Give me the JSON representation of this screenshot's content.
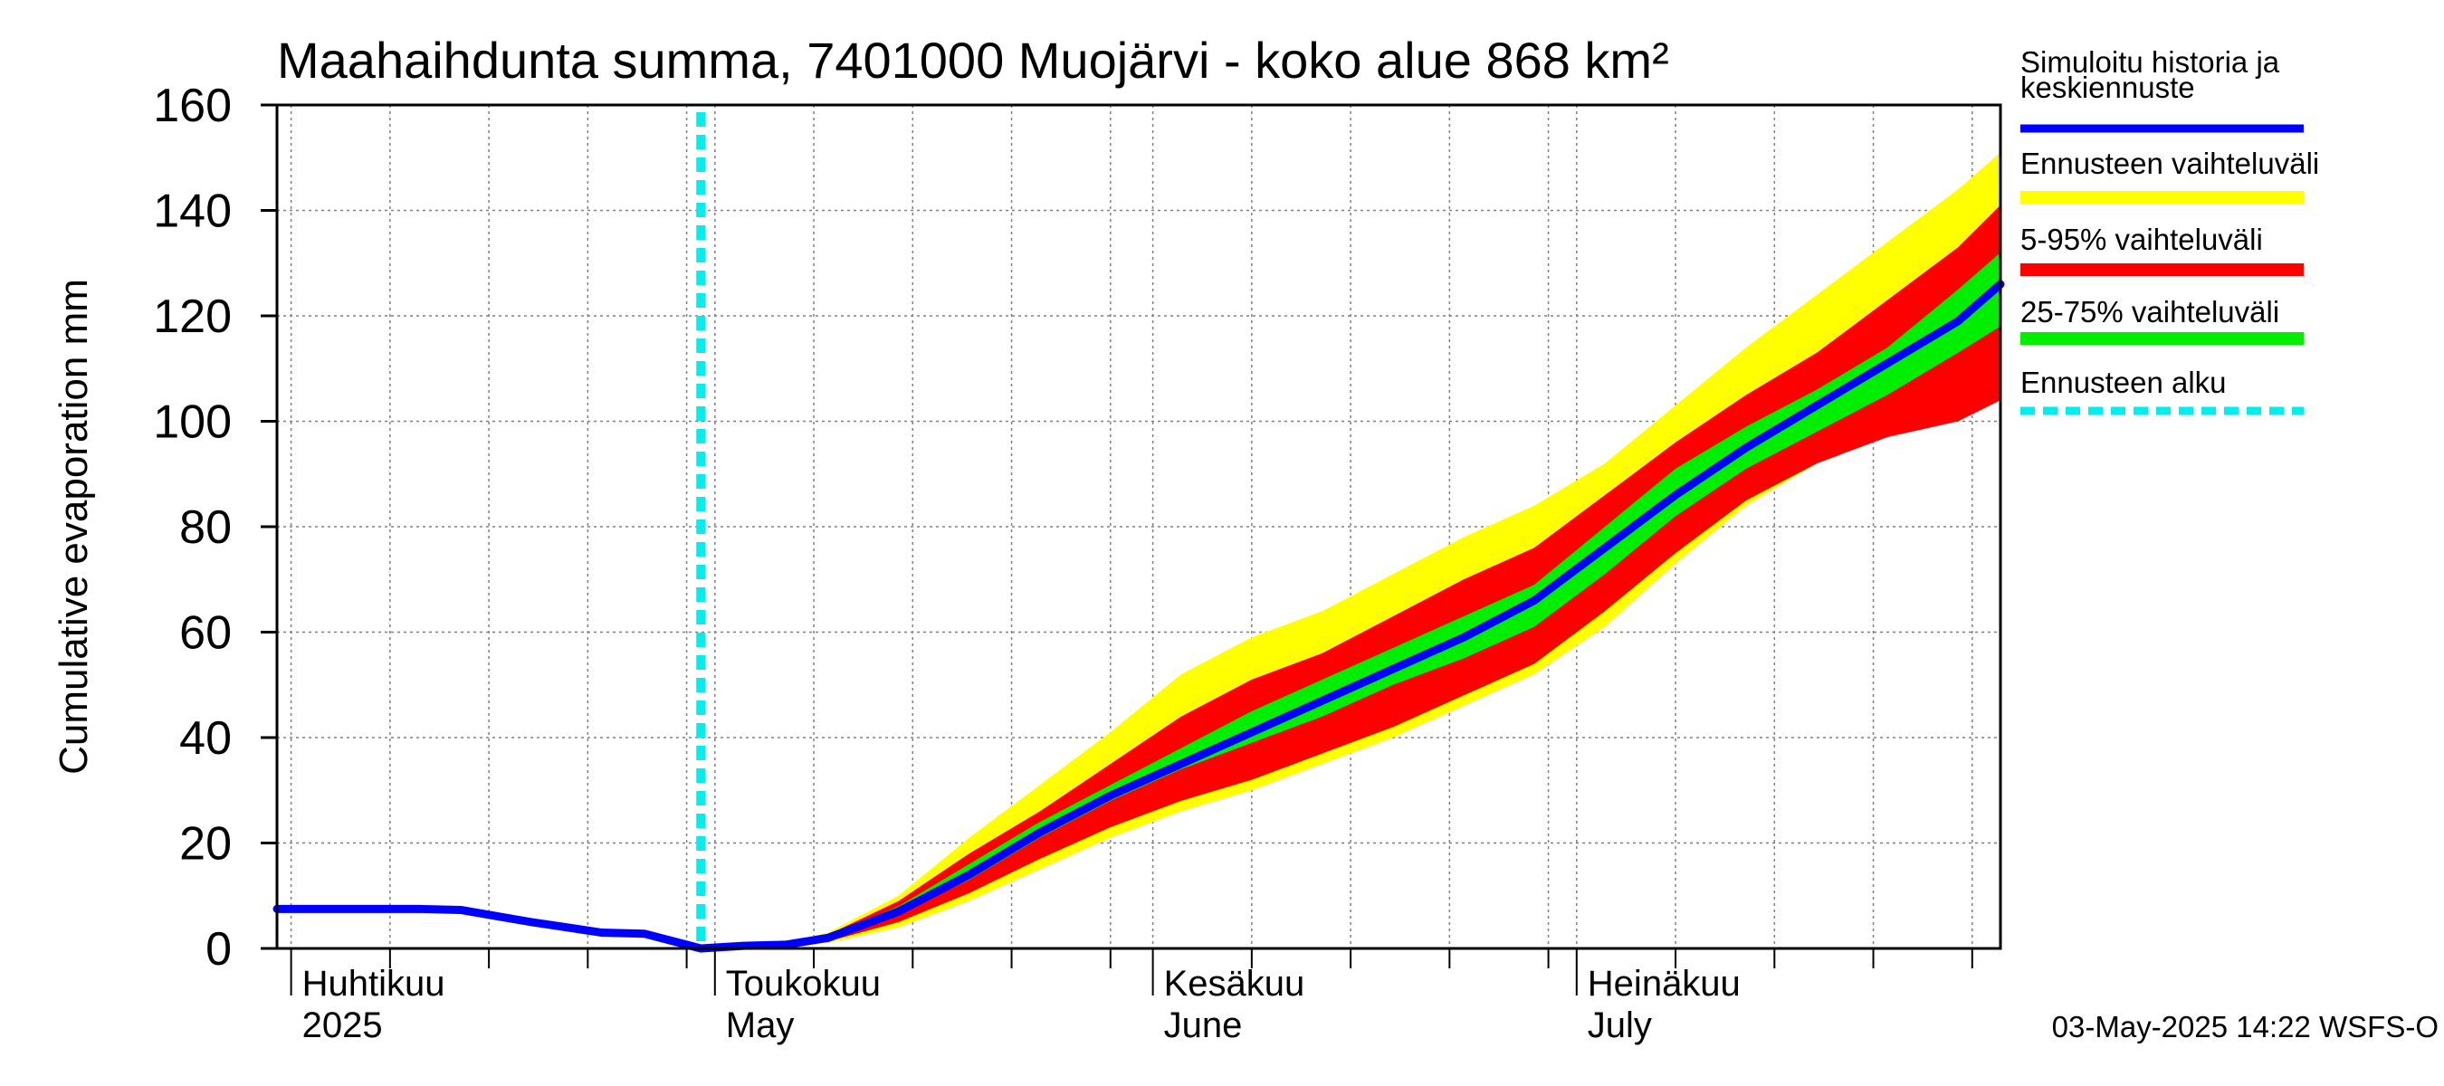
{
  "chart_data": {
    "type": "area",
    "title": "Maahaihdunta summa, 7401000 Muojärvi - koko alue 868 km²",
    "ylabel": "Cumulative evaporation   mm",
    "ylim": [
      0,
      160
    ],
    "yticks": [
      0,
      20,
      40,
      60,
      80,
      100,
      120,
      140,
      160
    ],
    "grid": true,
    "legend_position": "right",
    "x_range": [
      "2025-03-31",
      "2025-07-31"
    ],
    "forecast_start": "2025-04-30",
    "x_month_labels": [
      {
        "date": "2025-04-01",
        "line1": "Huhtikuu",
        "line2": "2025"
      },
      {
        "date": "2025-05-01",
        "line1": "Toukokuu",
        "line2": "May"
      },
      {
        "date": "2025-06-01",
        "line1": "Kesäkuu",
        "line2": "June"
      },
      {
        "date": "2025-07-01",
        "line1": "Heinäkuu",
        "line2": "July"
      }
    ],
    "x": [
      "2025-03-31",
      "2025-04-10",
      "2025-04-13",
      "2025-04-18",
      "2025-04-23",
      "2025-04-26",
      "2025-04-30",
      "2025-05-03",
      "2025-05-06",
      "2025-05-09",
      "2025-05-14",
      "2025-05-19",
      "2025-05-24",
      "2025-05-29",
      "2025-06-03",
      "2025-06-08",
      "2025-06-13",
      "2025-06-18",
      "2025-06-23",
      "2025-06-28",
      "2025-07-03",
      "2025-07-08",
      "2025-07-13",
      "2025-07-18",
      "2025-07-23",
      "2025-07-28",
      "2025-07-31"
    ],
    "series": [
      {
        "name": "Ennusteen vaihteluväli",
        "color": "#ffff00",
        "kind": "band",
        "low": [
          null,
          null,
          null,
          null,
          null,
          null,
          0,
          0,
          0.3,
          1,
          4,
          9,
          15,
          21,
          26,
          30,
          35,
          40,
          46,
          52,
          61,
          73,
          84,
          92,
          98,
          102,
          106
        ],
        "high": [
          null,
          null,
          null,
          null,
          null,
          null,
          0,
          0.3,
          1.2,
          3,
          10,
          21,
          31,
          41,
          52,
          59,
          64,
          71,
          78,
          84,
          92,
          103,
          114,
          124,
          134,
          144,
          151
        ]
      },
      {
        "name": "5-95% vaihteluväli",
        "color": "#ff0000",
        "kind": "band",
        "low": [
          null,
          null,
          null,
          null,
          null,
          null,
          0,
          0,
          0.4,
          1.3,
          5,
          10.5,
          17,
          23,
          28,
          32,
          37,
          42,
          48,
          54,
          64,
          75,
          85,
          92,
          97,
          100,
          104
        ],
        "high": [
          null,
          null,
          null,
          null,
          null,
          null,
          0,
          0.2,
          1,
          2.6,
          9,
          18,
          26,
          35,
          44,
          51,
          56,
          63,
          70,
          76,
          86,
          96,
          105,
          113,
          123,
          133,
          141
        ]
      },
      {
        "name": "25-75% vaihteluväli",
        "color": "#00ee00",
        "kind": "band",
        "low": [
          null,
          null,
          null,
          null,
          null,
          null,
          0,
          0.1,
          0.6,
          1.8,
          6.5,
          13,
          21,
          28,
          34,
          39,
          44,
          50,
          55,
          61,
          71,
          82,
          91,
          98,
          105,
          113,
          118
        ],
        "high": [
          null,
          null,
          null,
          null,
          null,
          null,
          0,
          0.2,
          0.9,
          2.4,
          8,
          16,
          24,
          31,
          38,
          45,
          51,
          57,
          63,
          69,
          80,
          91,
          99,
          106,
          114,
          125,
          132
        ]
      },
      {
        "name": "Simuloitu historia ja keskiennuste",
        "color": "#0000ff",
        "kind": "line",
        "values": [
          7.5,
          7.5,
          7.3,
          5,
          3,
          2.8,
          0,
          0.5,
          0.7,
          2,
          7,
          14,
          22,
          29,
          35,
          41,
          47,
          53,
          59,
          66,
          76,
          86,
          95,
          103,
          111,
          119,
          126
        ]
      }
    ],
    "legend": [
      {
        "label": "Simuloitu historia ja keskiennuste",
        "line1": "Simuloitu historia ja",
        "line2": "keskiennuste",
        "color": "#0000ff",
        "style": "solid"
      },
      {
        "label": "Ennusteen vaihteluväli",
        "color": "#ffff00",
        "style": "solid"
      },
      {
        "label": "5-95% vaihteluväli",
        "color": "#ff0000",
        "style": "solid"
      },
      {
        "label": "25-75% vaihteluväli",
        "color": "#00ee00",
        "style": "solid"
      },
      {
        "label": "Ennusteen alku",
        "color": "#00eeee",
        "style": "dashed"
      }
    ],
    "footer": "03-May-2025 14:22 WSFS-O"
  }
}
